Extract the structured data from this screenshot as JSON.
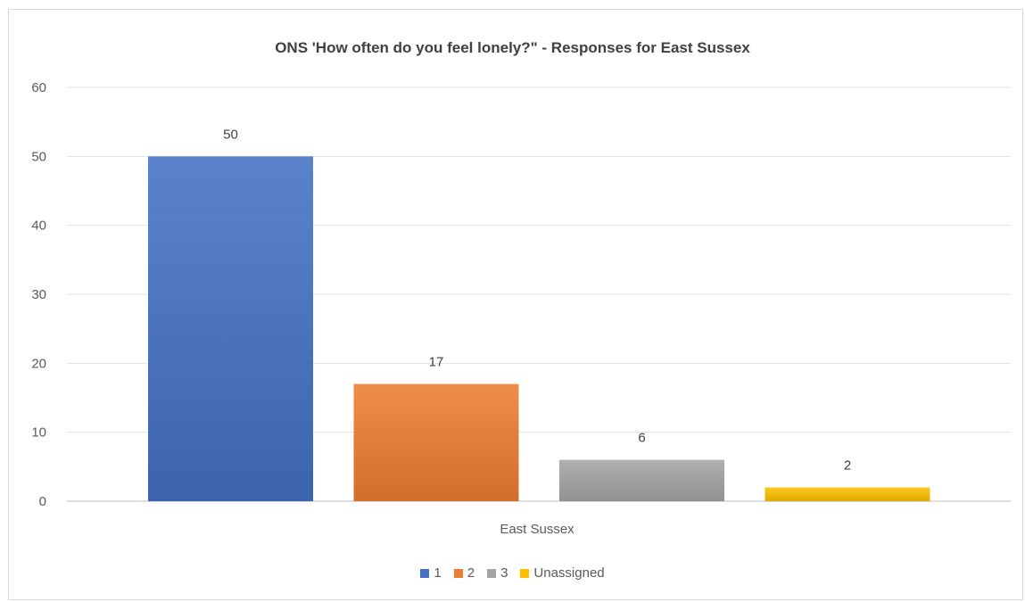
{
  "chart_data": {
    "type": "bar",
    "title": "ONS 'How often do you feel lonely?\" - Responses for East Sussex",
    "categories": [
      "East Sussex"
    ],
    "series": [
      {
        "name": "1",
        "values": [
          50
        ],
        "color": "#4472c4"
      },
      {
        "name": "2",
        "values": [
          17
        ],
        "color": "#ed7d31"
      },
      {
        "name": "3",
        "values": [
          6
        ],
        "color": "#a5a5a5"
      },
      {
        "name": "Unassigned",
        "values": [
          2
        ],
        "color": "#ffc000"
      }
    ],
    "ylim": [
      0,
      60
    ],
    "yticks": [
      "0",
      "10",
      "20",
      "30",
      "40",
      "50",
      "60"
    ],
    "xlabel": "",
    "ylabel": "",
    "grid": true,
    "legend_position": "bottom",
    "data_labels": true
  }
}
